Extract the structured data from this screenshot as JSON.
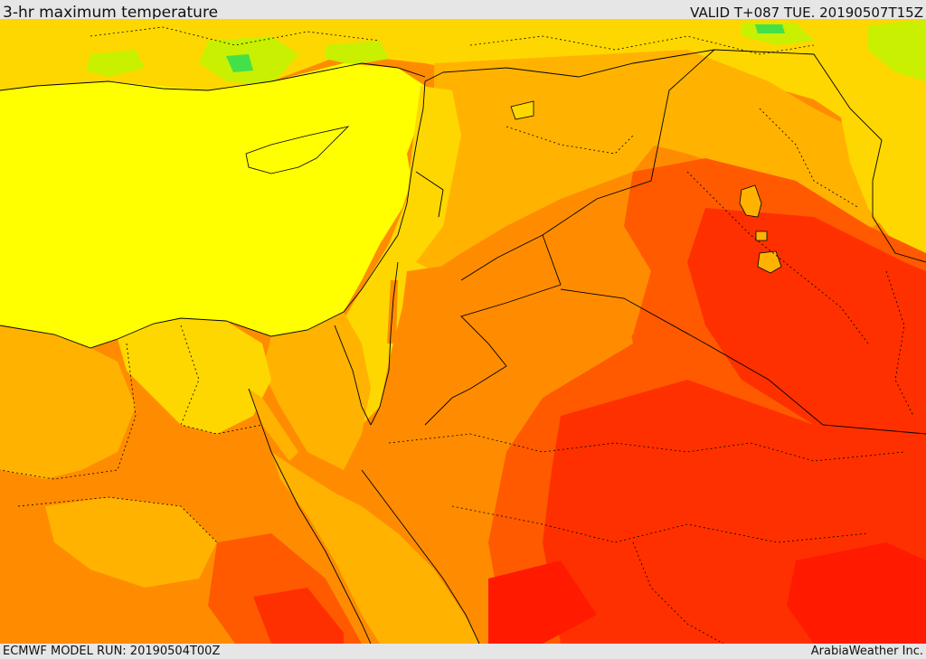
{
  "header": {
    "title": "3-hr maximum temperature",
    "valid_time": "VALID T+087 TUE. 20190507T15Z"
  },
  "footer": {
    "model_run": "ECMWF MODEL RUN: 20190504T00Z",
    "credit": "ArabiaWeather Inc."
  },
  "map": {
    "field": "3-hr maximum temperature",
    "colors": {
      "sea_yellow": "#ffff00",
      "yellow_orange": "#ffd700",
      "light_orange": "#ffb300",
      "orange": "#ff8c00",
      "orange_red": "#ff5a00",
      "red": "#ff3000",
      "deep_red": "#ff1a00",
      "light_green": "#c8f000",
      "green": "#44e04a",
      "borders": "#000000"
    }
  }
}
